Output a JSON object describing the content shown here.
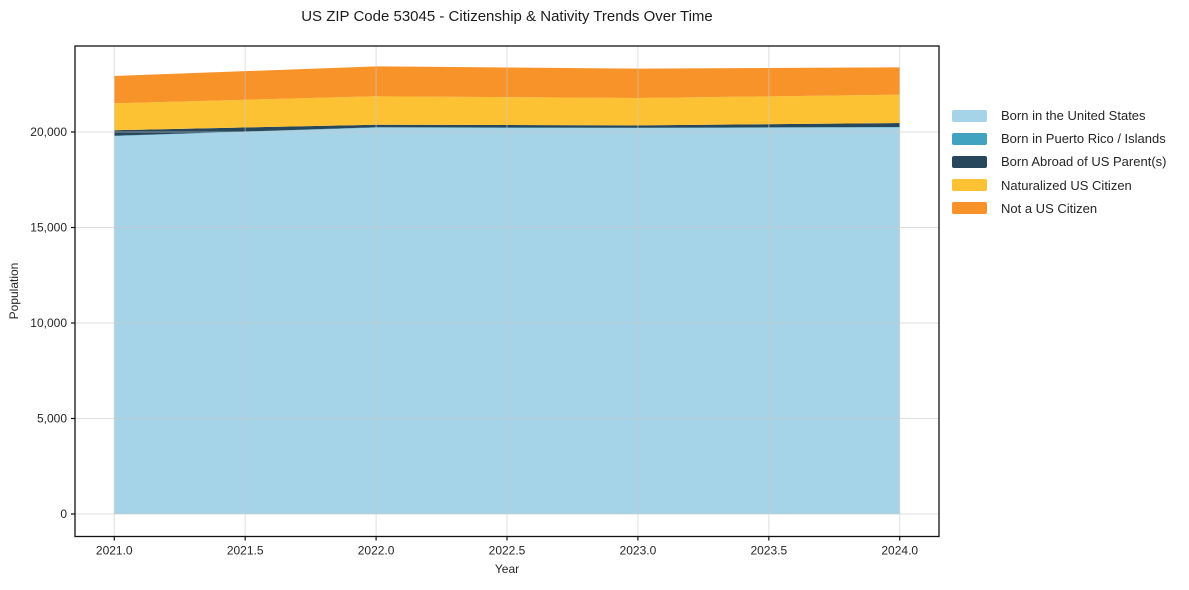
{
  "chart_data": {
    "type": "area",
    "stacked": true,
    "title": "US ZIP Code 53045 - Citizenship & Nativity Trends Over Time",
    "xlabel": "Year",
    "ylabel": "Population",
    "x": [
      2021,
      2022,
      2023,
      2024
    ],
    "series": [
      {
        "name": "Born in the United States",
        "color": "#A5D3E8",
        "values": [
          19790,
          20230,
          20210,
          20245
        ]
      },
      {
        "name": "Born in Puerto Rico / Islands",
        "color": "#42A3C0",
        "values": [
          15,
          20,
          15,
          20
        ]
      },
      {
        "name": "Born Abroad of US Parent(s)",
        "color": "#27485C",
        "values": [
          290,
          130,
          125,
          205
        ]
      },
      {
        "name": "Naturalized US Citizen",
        "color": "#FDC233",
        "values": [
          1410,
          1490,
          1430,
          1485
        ]
      },
      {
        "name": "Not a US Citizen",
        "color": "#F79329",
        "values": [
          1430,
          1570,
          1540,
          1430
        ]
      }
    ],
    "stacked_totals": [
      22935,
      23440,
      23320,
      23385
    ],
    "xlim": [
      2020.85,
      2024.15
    ],
    "ylim": [
      -1178,
      24504
    ],
    "xticks": {
      "values": [
        2021.0,
        2021.5,
        2022.0,
        2022.5,
        2023.0,
        2023.5,
        2024.0
      ],
      "labels": [
        "2021.0",
        "2021.5",
        "2022.0",
        "2022.5",
        "2023.0",
        "2023.5",
        "2024.0"
      ]
    },
    "yticks": {
      "values": [
        0,
        5000,
        10000,
        15000,
        20000
      ],
      "labels": [
        "0",
        "5,000",
        "10,000",
        "15,000",
        "20,000"
      ]
    },
    "grid": true,
    "legend_position": "right"
  }
}
